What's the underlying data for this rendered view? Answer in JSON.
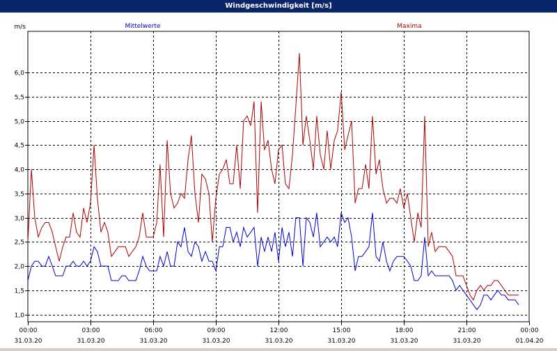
{
  "window": {
    "title": "Windgeschwindigkeit [m/s]"
  },
  "chart_data": {
    "type": "line",
    "title": "Windgeschwindigkeit [m/s]",
    "ylabel": "m/s",
    "xlabel": "",
    "ylim": [
      0.85,
      6.85
    ],
    "xlim": [
      0,
      24
    ],
    "grid": true,
    "y_ticks": [
      "1,0",
      "1,5",
      "2,0",
      "2,5",
      "3,0",
      "3,5",
      "4,0",
      "4,5",
      "5,0",
      "5,5",
      "6,0"
    ],
    "x_ticks": [
      {
        "time": "00:00",
        "date": "31.03.20"
      },
      {
        "time": "03:00",
        "date": "31.03.20"
      },
      {
        "time": "06:00",
        "date": "31.03.20"
      },
      {
        "time": "09:00",
        "date": "31.03.20"
      },
      {
        "time": "12:00",
        "date": "31.03.20"
      },
      {
        "time": "15:00",
        "date": "31.03.20"
      },
      {
        "time": "18:00",
        "date": "31.03.20"
      },
      {
        "time": "21:00",
        "date": "31.03.20"
      },
      {
        "time": "00:00",
        "date": "01.04.20"
      }
    ],
    "series": [
      {
        "name": "Mittelwerte",
        "color": "#0000cc",
        "points": [
          [
            0.0,
            1.7
          ],
          [
            0.17,
            2.0
          ],
          [
            0.33,
            2.1
          ],
          [
            0.5,
            2.1
          ],
          [
            0.67,
            2.0
          ],
          [
            0.83,
            2.0
          ],
          [
            1.0,
            2.2
          ],
          [
            1.17,
            2.0
          ],
          [
            1.33,
            1.8
          ],
          [
            1.5,
            1.8
          ],
          [
            1.67,
            1.8
          ],
          [
            1.83,
            2.0
          ],
          [
            2.0,
            2.0
          ],
          [
            2.17,
            2.1
          ],
          [
            2.33,
            2.0
          ],
          [
            2.5,
            2.0
          ],
          [
            2.67,
            2.1
          ],
          [
            2.83,
            2.0
          ],
          [
            3.0,
            2.1
          ],
          [
            3.17,
            2.4
          ],
          [
            3.33,
            2.3
          ],
          [
            3.5,
            2.0
          ],
          [
            3.67,
            2.0
          ],
          [
            3.83,
            2.0
          ],
          [
            4.0,
            1.7
          ],
          [
            4.17,
            1.7
          ],
          [
            4.33,
            1.7
          ],
          [
            4.5,
            1.8
          ],
          [
            4.67,
            1.8
          ],
          [
            4.83,
            1.7
          ],
          [
            5.0,
            1.7
          ],
          [
            5.17,
            1.7
          ],
          [
            5.33,
            1.9
          ],
          [
            5.5,
            2.2
          ],
          [
            5.67,
            2.0
          ],
          [
            5.83,
            1.9
          ],
          [
            6.0,
            1.9
          ],
          [
            6.17,
            1.9
          ],
          [
            6.33,
            2.2
          ],
          [
            6.5,
            2.0
          ],
          [
            6.67,
            2.3
          ],
          [
            6.83,
            2.0
          ],
          [
            7.0,
            2.0
          ],
          [
            7.17,
            2.5
          ],
          [
            7.33,
            2.4
          ],
          [
            7.5,
            2.8
          ],
          [
            7.67,
            2.3
          ],
          [
            7.83,
            2.2
          ],
          [
            8.0,
            2.5
          ],
          [
            8.17,
            2.4
          ],
          [
            8.33,
            2.1
          ],
          [
            8.5,
            2.3
          ],
          [
            8.67,
            2.1
          ],
          [
            8.83,
            2.1
          ],
          [
            9.0,
            1.9
          ],
          [
            9.17,
            2.4
          ],
          [
            9.33,
            2.4
          ],
          [
            9.5,
            2.8
          ],
          [
            9.67,
            2.8
          ],
          [
            9.83,
            2.5
          ],
          [
            10.0,
            2.7
          ],
          [
            10.17,
            2.4
          ],
          [
            10.33,
            2.8
          ],
          [
            10.5,
            2.6
          ],
          [
            10.67,
            2.7
          ],
          [
            10.83,
            2.8
          ],
          [
            11.0,
            2.0
          ],
          [
            11.17,
            2.6
          ],
          [
            11.33,
            2.3
          ],
          [
            11.5,
            2.6
          ],
          [
            11.67,
            2.3
          ],
          [
            11.83,
            2.7
          ],
          [
            12.0,
            2.1
          ],
          [
            12.17,
            2.8
          ],
          [
            12.33,
            2.4
          ],
          [
            12.5,
            2.7
          ],
          [
            12.67,
            2.2
          ],
          [
            12.83,
            3.0
          ],
          [
            13.0,
            3.0
          ],
          [
            13.17,
            2.0
          ],
          [
            13.33,
            3.0
          ],
          [
            13.5,
            2.9
          ],
          [
            13.67,
            2.6
          ],
          [
            13.83,
            3.1
          ],
          [
            14.0,
            2.4
          ],
          [
            14.17,
            2.5
          ],
          [
            14.33,
            2.6
          ],
          [
            14.5,
            2.5
          ],
          [
            14.67,
            2.6
          ],
          [
            14.83,
            2.4
          ],
          [
            15.0,
            3.1
          ],
          [
            15.17,
            2.9
          ],
          [
            15.33,
            3.0
          ],
          [
            15.5,
            2.6
          ],
          [
            15.67,
            1.9
          ],
          [
            15.83,
            2.2
          ],
          [
            16.0,
            2.2
          ],
          [
            16.17,
            2.3
          ],
          [
            16.33,
            2.4
          ],
          [
            16.5,
            3.1
          ],
          [
            16.67,
            2.2
          ],
          [
            16.83,
            2.1
          ],
          [
            17.0,
            2.5
          ],
          [
            17.17,
            2.1
          ],
          [
            17.33,
            1.9
          ],
          [
            17.5,
            2.1
          ],
          [
            17.67,
            2.2
          ],
          [
            17.83,
            2.2
          ],
          [
            18.0,
            2.2
          ],
          [
            18.17,
            2.1
          ],
          [
            18.33,
            2.0
          ],
          [
            18.5,
            1.7
          ],
          [
            18.67,
            1.7
          ],
          [
            18.83,
            1.8
          ],
          [
            19.0,
            2.6
          ],
          [
            19.17,
            1.8
          ],
          [
            19.33,
            1.9
          ],
          [
            19.5,
            1.8
          ],
          [
            19.67,
            1.8
          ],
          [
            19.83,
            1.8
          ],
          [
            20.0,
            1.8
          ],
          [
            20.17,
            1.8
          ],
          [
            20.33,
            1.7
          ],
          [
            20.5,
            1.5
          ],
          [
            20.67,
            1.6
          ],
          [
            20.83,
            1.5
          ],
          [
            21.0,
            1.4
          ],
          [
            21.17,
            1.3
          ],
          [
            21.33,
            1.2
          ],
          [
            21.5,
            1.1
          ],
          [
            21.67,
            1.2
          ],
          [
            21.83,
            1.4
          ],
          [
            22.0,
            1.4
          ],
          [
            22.17,
            1.3
          ],
          [
            22.33,
            1.4
          ],
          [
            22.5,
            1.5
          ],
          [
            22.67,
            1.4
          ],
          [
            22.83,
            1.4
          ],
          [
            23.0,
            1.3
          ],
          [
            23.17,
            1.3
          ],
          [
            23.33,
            1.3
          ],
          [
            23.5,
            1.2
          ]
        ]
      },
      {
        "name": "Maxima",
        "color": "#aa0000",
        "points": [
          [
            0.0,
            2.5
          ],
          [
            0.17,
            4.0
          ],
          [
            0.33,
            3.0
          ],
          [
            0.5,
            2.6
          ],
          [
            0.67,
            2.8
          ],
          [
            0.83,
            2.9
          ],
          [
            1.0,
            2.9
          ],
          [
            1.17,
            2.7
          ],
          [
            1.33,
            2.4
          ],
          [
            1.5,
            2.1
          ],
          [
            1.67,
            2.4
          ],
          [
            1.83,
            2.6
          ],
          [
            2.0,
            2.6
          ],
          [
            2.17,
            3.1
          ],
          [
            2.33,
            2.7
          ],
          [
            2.5,
            2.6
          ],
          [
            2.67,
            3.2
          ],
          [
            2.83,
            2.9
          ],
          [
            3.0,
            3.3
          ],
          [
            3.17,
            4.5
          ],
          [
            3.33,
            3.4
          ],
          [
            3.5,
            2.7
          ],
          [
            3.67,
            2.9
          ],
          [
            3.83,
            2.7
          ],
          [
            4.0,
            2.2
          ],
          [
            4.17,
            2.3
          ],
          [
            4.33,
            2.4
          ],
          [
            4.5,
            2.4
          ],
          [
            4.67,
            2.4
          ],
          [
            4.83,
            2.2
          ],
          [
            5.0,
            2.3
          ],
          [
            5.17,
            2.4
          ],
          [
            5.33,
            2.6
          ],
          [
            5.5,
            3.1
          ],
          [
            5.67,
            2.6
          ],
          [
            5.83,
            2.6
          ],
          [
            6.0,
            2.6
          ],
          [
            6.17,
            2.9
          ],
          [
            6.33,
            4.1
          ],
          [
            6.5,
            2.6
          ],
          [
            6.67,
            4.6
          ],
          [
            6.83,
            3.5
          ],
          [
            7.0,
            3.2
          ],
          [
            7.17,
            3.3
          ],
          [
            7.33,
            3.5
          ],
          [
            7.5,
            3.4
          ],
          [
            7.67,
            4.2
          ],
          [
            7.83,
            4.7
          ],
          [
            8.0,
            3.5
          ],
          [
            8.17,
            2.9
          ],
          [
            8.33,
            3.9
          ],
          [
            8.5,
            3.8
          ],
          [
            8.67,
            3.5
          ],
          [
            8.83,
            2.5
          ],
          [
            9.0,
            3.4
          ],
          [
            9.17,
            3.9
          ],
          [
            9.33,
            4.0
          ],
          [
            9.5,
            4.2
          ],
          [
            9.67,
            3.7
          ],
          [
            9.83,
            3.7
          ],
          [
            10.0,
            4.5
          ],
          [
            10.17,
            3.6
          ],
          [
            10.33,
            5.0
          ],
          [
            10.5,
            5.1
          ],
          [
            10.67,
            4.9
          ],
          [
            10.83,
            5.4
          ],
          [
            11.0,
            3.1
          ],
          [
            11.17,
            5.4
          ],
          [
            11.33,
            4.4
          ],
          [
            11.5,
            4.6
          ],
          [
            11.67,
            4.0
          ],
          [
            11.83,
            3.7
          ],
          [
            12.0,
            4.4
          ],
          [
            12.17,
            4.5
          ],
          [
            12.33,
            3.7
          ],
          [
            12.5,
            3.6
          ],
          [
            12.67,
            4.3
          ],
          [
            12.83,
            5.3
          ],
          [
            13.0,
            6.4
          ],
          [
            13.17,
            4.5
          ],
          [
            13.33,
            5.1
          ],
          [
            13.5,
            4.6
          ],
          [
            13.67,
            4.0
          ],
          [
            13.83,
            5.1
          ],
          [
            14.0,
            4.3
          ],
          [
            14.17,
            4.0
          ],
          [
            14.33,
            4.8
          ],
          [
            14.5,
            4.0
          ],
          [
            14.67,
            4.6
          ],
          [
            14.83,
            4.8
          ],
          [
            15.0,
            5.6
          ],
          [
            15.17,
            4.4
          ],
          [
            15.33,
            4.7
          ],
          [
            15.5,
            5.0
          ],
          [
            15.67,
            3.3
          ],
          [
            15.83,
            3.6
          ],
          [
            16.0,
            3.6
          ],
          [
            16.17,
            4.1
          ],
          [
            16.33,
            3.6
          ],
          [
            16.5,
            5.1
          ],
          [
            16.67,
            3.9
          ],
          [
            16.83,
            4.2
          ],
          [
            17.0,
            3.6
          ],
          [
            17.17,
            3.3
          ],
          [
            17.33,
            3.4
          ],
          [
            17.5,
            3.4
          ],
          [
            17.67,
            3.3
          ],
          [
            17.83,
            3.6
          ],
          [
            18.0,
            3.2
          ],
          [
            18.17,
            3.5
          ],
          [
            18.33,
            3.0
          ],
          [
            18.5,
            2.5
          ],
          [
            18.67,
            3.1
          ],
          [
            18.83,
            2.8
          ],
          [
            19.0,
            5.1
          ],
          [
            19.17,
            2.4
          ],
          [
            19.33,
            2.7
          ],
          [
            19.5,
            2.3
          ],
          [
            19.67,
            2.4
          ],
          [
            19.83,
            2.4
          ],
          [
            20.0,
            2.4
          ],
          [
            20.17,
            2.3
          ],
          [
            20.33,
            2.2
          ],
          [
            20.5,
            1.8
          ],
          [
            20.67,
            1.8
          ],
          [
            20.83,
            1.8
          ],
          [
            21.0,
            1.6
          ],
          [
            21.17,
            1.4
          ],
          [
            21.33,
            1.3
          ],
          [
            21.5,
            1.5
          ],
          [
            21.67,
            1.6
          ],
          [
            21.83,
            1.5
          ],
          [
            22.0,
            1.6
          ],
          [
            22.17,
            1.6
          ],
          [
            22.33,
            1.7
          ],
          [
            22.5,
            1.7
          ],
          [
            22.67,
            1.6
          ],
          [
            22.83,
            1.5
          ],
          [
            23.0,
            1.4
          ],
          [
            23.17,
            1.4
          ],
          [
            23.33,
            1.4
          ],
          [
            23.5,
            1.4
          ]
        ]
      }
    ]
  }
}
